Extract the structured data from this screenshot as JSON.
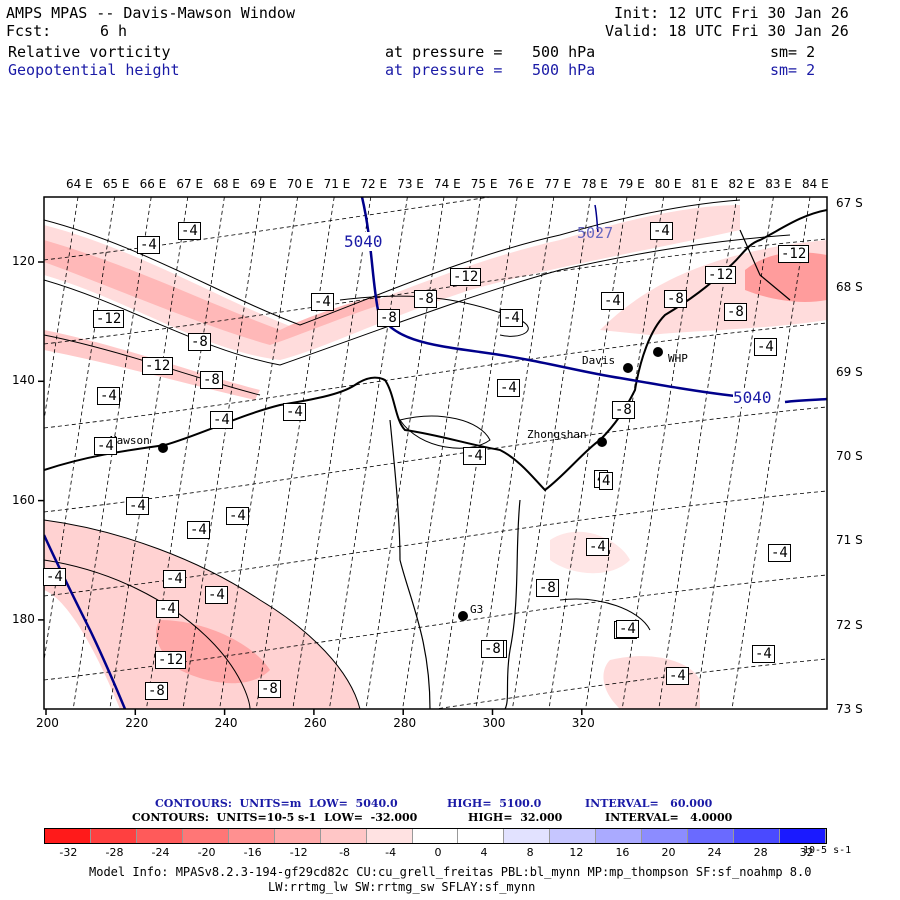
{
  "header": {
    "title": "AMPS MPAS -- Davis-Mawson Window",
    "init": "Init: 12 UTC Fri 30 Jan 26",
    "fcst_label": "Fcst:",
    "fcst_value": "6 h",
    "valid": "Valid: 18 UTC Fri 30 Jan 26",
    "field1": {
      "name": "Relative vorticity",
      "pressure_label": "at pressure =",
      "pressure_value": "500 hPa",
      "sm": "sm= 2"
    },
    "field2": {
      "name": "Geopotential height",
      "pressure_label": "at pressure =",
      "pressure_value": "500 hPa",
      "sm": "sm= 2"
    }
  },
  "map": {
    "lon_labels": [
      "64 E",
      "65 E",
      "66 E",
      "67 E",
      "68 E",
      "69 E",
      "70 E",
      "71 E",
      "72 E",
      "73 E",
      "74 E",
      "75 E",
      "76 E",
      "77 E",
      "78 E",
      "79 E",
      "80 E",
      "81 E",
      "82 E",
      "83 E",
      "84 E"
    ],
    "lat_labels": [
      "67 S",
      "68 S",
      "69 S",
      "70 S",
      "71 S",
      "72 S",
      "73 S"
    ],
    "x_ticks": [
      "200",
      "220",
      "240",
      "260",
      "280",
      "300",
      "320"
    ],
    "y_ticks": [
      "120",
      "140",
      "160",
      "180"
    ],
    "stations": [
      "Mawson",
      "Davis",
      "WHP",
      "Zhongshan",
      "G3"
    ],
    "height_labels": [
      "5040",
      "5027",
      "5040"
    ],
    "vort_labels": [
      "-4",
      "-4",
      "-12",
      "-12",
      "-8",
      "-12",
      "-8",
      "-4",
      "-4",
      "-4",
      "-4",
      "-8",
      "-8",
      "-12",
      "-4",
      "-4",
      "-4",
      "-4",
      "-4",
      "-12",
      "-8",
      "-8",
      "-4",
      "-8",
      "-4",
      "-4",
      "-4",
      "-4",
      "-4",
      "-4",
      "-4",
      "4",
      "-4",
      "-4",
      "-8",
      "-4",
      "-4",
      "-12",
      "-8",
      "-8",
      "-4",
      "-4",
      "-4",
      "4",
      "-8",
      "-4"
    ]
  },
  "legend": {
    "line1": {
      "label": "CONTOURS:  UNITS=m  LOW=  5040.0",
      "high": "HIGH=  5100.0",
      "interval": "INTERVAL=   60.000"
    },
    "line2": {
      "label": "CONTOURS:  UNITS=10-5 s-1  LOW=  -32.000",
      "high": "HIGH=  32.000",
      "interval": "INTERVAL=   4.0000"
    },
    "colors": [
      "#ff1a1a",
      "#ff4040",
      "#ff5a5a",
      "#ff7676",
      "#ff9090",
      "#ffaaaa",
      "#ffc6c6",
      "#ffe2e2",
      "#ffffff",
      "#ffffff",
      "#e2e2ff",
      "#c6c6ff",
      "#aaaaff",
      "#8c8cff",
      "#6a6aff",
      "#4a4aff",
      "#1a1aff"
    ],
    "ticks": [
      "-32",
      "-28",
      "-24",
      "-20",
      "-16",
      "-12",
      "-8",
      "-4",
      "0",
      "4",
      "8",
      "12",
      "16",
      "20",
      "24",
      "28",
      "32"
    ],
    "unit": "10-5 s-1"
  },
  "footer": {
    "line1": "Model Info: MPASv8.2.3-194-gf29cd82c CU:cu_grell_freitas PBL:bl_mynn MP:mp_thompson SF:sf_noahmp 8.0",
    "line2": "LW:rrtmg_lw SW:rrtmg_sw SFLAY:sf_mynn"
  }
}
